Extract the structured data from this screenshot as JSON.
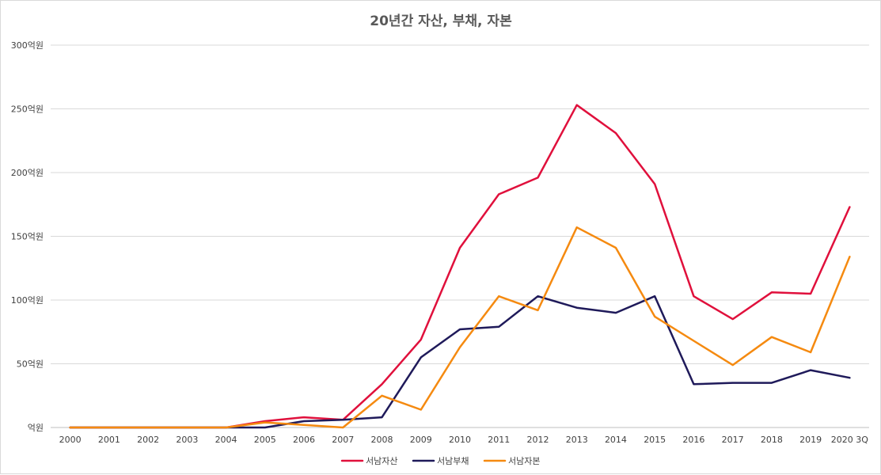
{
  "chart_data": {
    "type": "line",
    "title": "20년간 자산, 부채, 자본",
    "xlabel": "",
    "ylabel": "",
    "categories": [
      "2000",
      "2001",
      "2002",
      "2003",
      "2004",
      "2005",
      "2006",
      "2007",
      "2008",
      "2009",
      "2010",
      "2011",
      "2012",
      "2013",
      "2014",
      "2015",
      "2016",
      "2017",
      "2018",
      "2019",
      "2020 3Q"
    ],
    "y_ticks": [
      "억원",
      "50억원",
      "100억원",
      "150억원",
      "200억원",
      "250억원",
      "300억원"
    ],
    "ylim": [
      0,
      300
    ],
    "grid": true,
    "legend_position": "bottom",
    "series": [
      {
        "name": "서남자산",
        "color": "#e0103c",
        "values": [
          0,
          0,
          0,
          0,
          0,
          5,
          8,
          6,
          34,
          69,
          141,
          183,
          196,
          253,
          231,
          191,
          103,
          85,
          106,
          105,
          173
        ]
      },
      {
        "name": "서남부채",
        "color": "#1f1a5a",
        "values": [
          0,
          0,
          0,
          0,
          0,
          0,
          5,
          6,
          8,
          55,
          77,
          79,
          103,
          94,
          90,
          103,
          34,
          35,
          35,
          45,
          39
        ]
      },
      {
        "name": "서남자본",
        "color": "#f58a10",
        "values": [
          0,
          0,
          0,
          0,
          0,
          4,
          2,
          0,
          25,
          14,
          63,
          103,
          92,
          157,
          141,
          87,
          68,
          49,
          71,
          59,
          134
        ]
      }
    ]
  }
}
